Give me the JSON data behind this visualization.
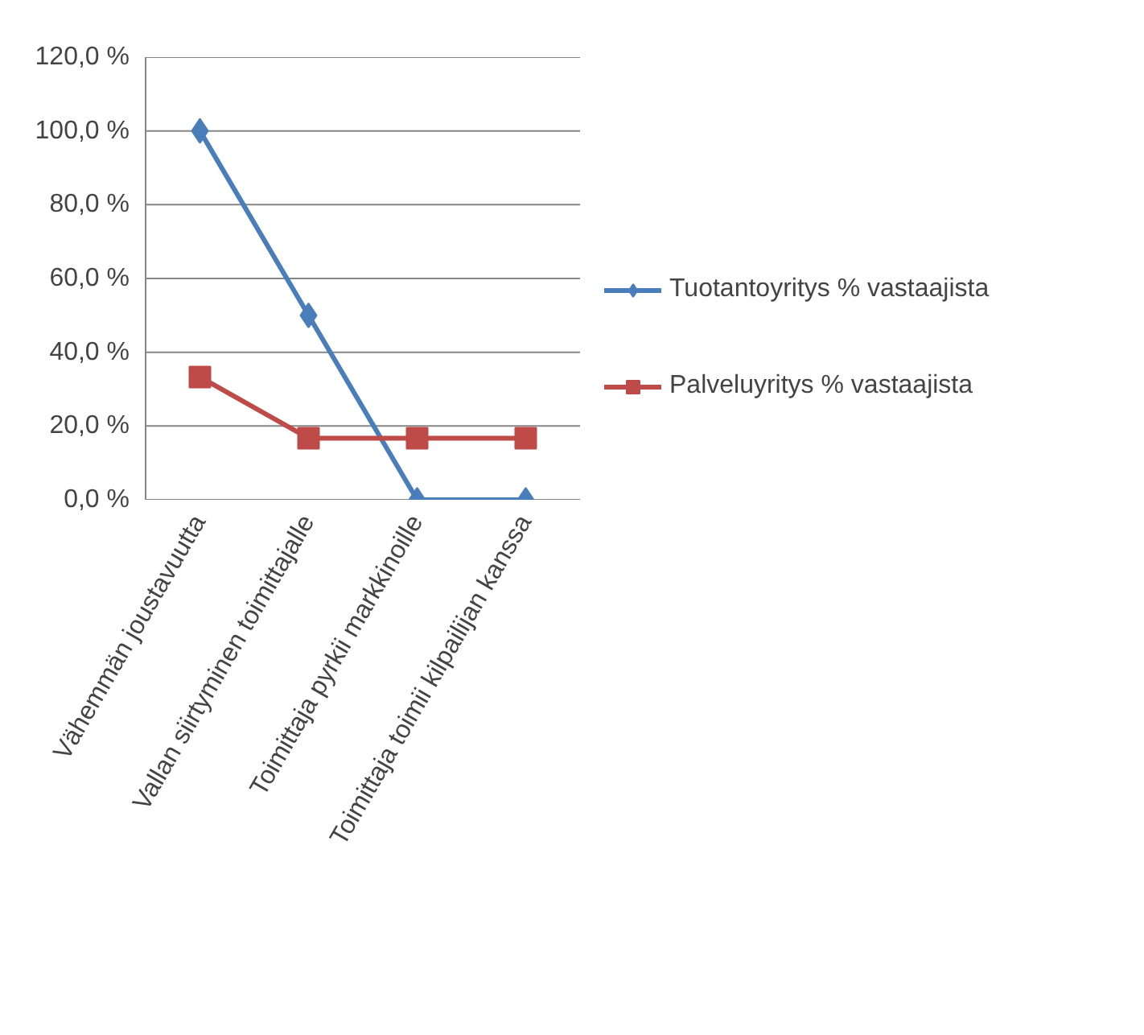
{
  "chart_data": {
    "type": "line",
    "categories": [
      "Vähemmän joustavuutta",
      "Vallan siirtyminen toimittajalle",
      "Toimittaja pyrkii markkinoille",
      "Toimittaja toimii kilpailijan kanssa"
    ],
    "series": [
      {
        "name": "Tuotantoyritys % vastaajista",
        "color": "#4a7ebb",
        "marker": "diamond",
        "values": [
          100,
          50,
          0,
          0
        ]
      },
      {
        "name": "Palveluyritys % vastaajista",
        "color": "#be4b48",
        "marker": "square",
        "values": [
          33.3,
          16.7,
          16.7,
          16.7
        ]
      }
    ],
    "ylim": [
      0,
      120
    ],
    "yticks": [
      {
        "value": 0,
        "label": "0,0 %"
      },
      {
        "value": 20,
        "label": "20,0 %"
      },
      {
        "value": 40,
        "label": "40,0 %"
      },
      {
        "value": 60,
        "label": "60,0 %"
      },
      {
        "value": 80,
        "label": "80,0 %"
      },
      {
        "value": 100,
        "label": "100,0 %"
      },
      {
        "value": 120,
        "label": "120,0 %"
      }
    ],
    "grid": "y",
    "legend": "right",
    "line_style": "solid"
  }
}
